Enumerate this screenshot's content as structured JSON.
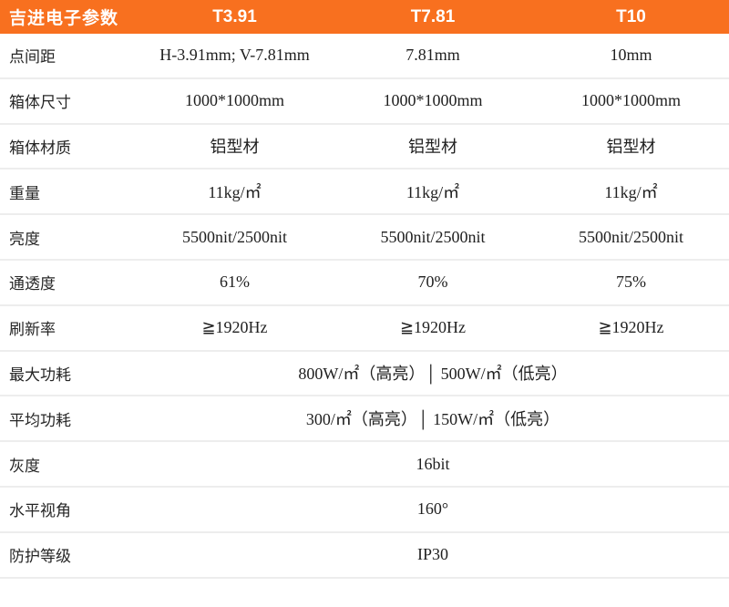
{
  "table": {
    "header": {
      "title": "吉进电子参数",
      "columns": [
        "T3.91",
        "T7.81",
        "T10"
      ]
    },
    "rows": [
      {
        "label": "点间距",
        "values": [
          "H-3.91mm; V-7.81mm",
          "7.81mm",
          "10mm"
        ]
      },
      {
        "label": "箱体尺寸",
        "values": [
          "1000*1000mm",
          "1000*1000mm",
          "1000*1000mm"
        ]
      },
      {
        "label": "箱体材质",
        "values": [
          "铝型材",
          "铝型材",
          "铝型材"
        ]
      },
      {
        "label": "重量",
        "values": [
          "11kg/㎡",
          "11kg/㎡",
          "11kg/㎡"
        ]
      },
      {
        "label": "亮度",
        "values": [
          "5500nit/2500nit",
          "5500nit/2500nit",
          "5500nit/2500nit"
        ]
      },
      {
        "label": "通透度",
        "values": [
          "61%",
          "70%",
          "75%"
        ]
      },
      {
        "label": "刷新率",
        "values": [
          "≧1920Hz",
          "≧1920Hz",
          "≧1920Hz"
        ]
      },
      {
        "label": "最大功耗",
        "span": "800W/㎡（高亮）│ 500W/㎡（低亮）"
      },
      {
        "label": "平均功耗",
        "span": "300/㎡（高亮）│ 150W/㎡（低亮）"
      },
      {
        "label": "灰度",
        "span": "16bit"
      },
      {
        "label": "水平视角",
        "span": "160°"
      },
      {
        "label": "防护等级",
        "span": "IP30"
      }
    ],
    "colors": {
      "header_bg": "#f8701f",
      "header_text": "#ffffff",
      "row_divider": "#ededed",
      "label_text": "#262626",
      "value_text": "#1f1f1f"
    }
  }
}
